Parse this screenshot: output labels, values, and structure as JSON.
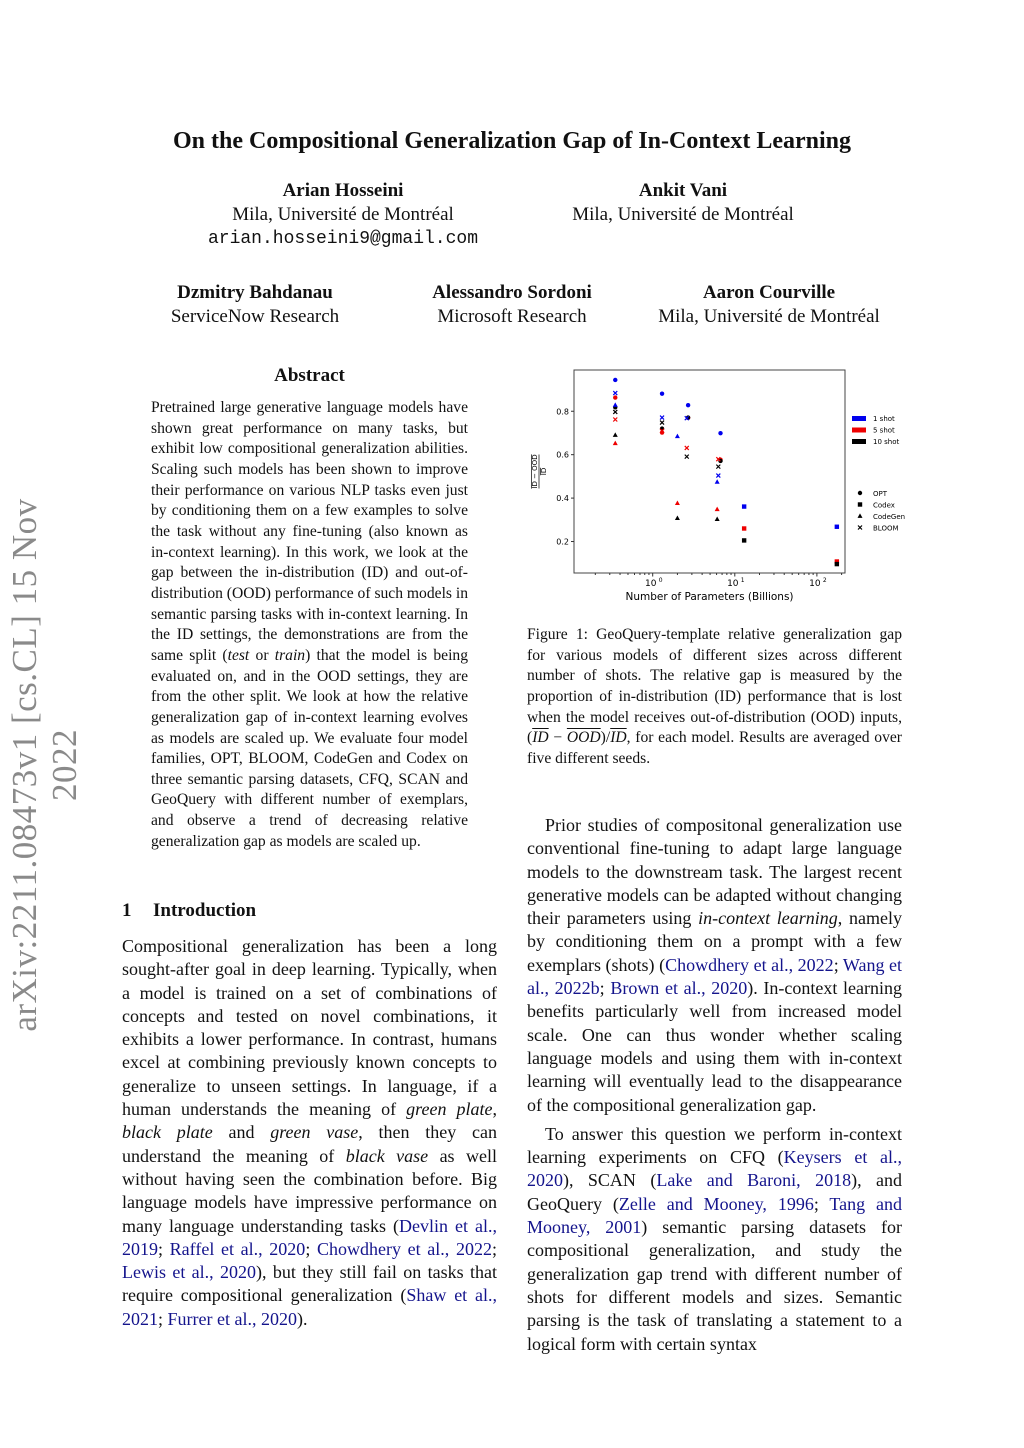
{
  "stamp": "arXiv:2211.08473v1  [cs.CL]  15 Nov 2022",
  "title": "On the Compositional Generalization Gap of In-Context Learning",
  "authors": [
    {
      "name": "Arian Hosseini",
      "affil": "Mila, Université de Montréal",
      "email": "arian.hosseini9@gmail.com"
    },
    {
      "name": "Ankit Vani",
      "affil": "Mila, Université de Montréal"
    },
    {
      "name": "Dzmitry Bahdanau",
      "affil": "ServiceNow Research"
    },
    {
      "name": "Alessandro Sordoni",
      "affil": "Microsoft Research"
    },
    {
      "name": "Aaron Courville",
      "affil": "Mila, Université de Montréal"
    }
  ],
  "abstract": {
    "heading": "Abstract",
    "segments": [
      {
        "t": "Pretrained large generative language models have shown great performance on many tasks, but exhibit low compositional generalization abilities. Scaling such models has been shown to improve their performance on various NLP tasks even just by conditioning them on a few examples to solve the task without any fine-tuning (also known as in-context learning). In this work, we look at the gap between the in-distribution (ID) and out-of-distribution (OOD) performance of such models in semantic parsing tasks with in-context learning. In the ID settings, the demonstrations are from the same split ("
      },
      {
        "t": "test",
        "s": "i"
      },
      {
        "t": " or "
      },
      {
        "t": "train",
        "s": "i"
      },
      {
        "t": ") that the model is being evaluated on, and in the OOD settings, they are from the other split. We look at how the relative generalization gap of in-context learning evolves as models are scaled up. We evaluate four model families, OPT, BLOOM, CodeGen and Codex on three semantic parsing datasets, CFQ, SCAN and GeoQuery with different number of exemplars, and observe a trend of decreasing relative generalization gap as models are scaled up."
      }
    ]
  },
  "section": {
    "number": "1",
    "title": "Introduction"
  },
  "intro_paragraphs": [
    [
      {
        "t": "Compositional generalization has been a long sought-after goal in deep learning. Typically, when a model is trained on a set of combinations of concepts and tested on novel combinations, it exhibits a lower performance. In contrast, humans excel at combining previously known concepts to generalize to unseen settings. In language, if a human understands the meaning of "
      },
      {
        "t": "green plate",
        "s": "i"
      },
      {
        "t": ", "
      },
      {
        "t": "black plate",
        "s": "i"
      },
      {
        "t": " and "
      },
      {
        "t": "green vase",
        "s": "i"
      },
      {
        "t": ", then they can understand the meaning of "
      },
      {
        "t": "black vase",
        "s": "i"
      },
      {
        "t": " as well without having seen the combination before. Big language models have impressive performance on many language understanding tasks ("
      },
      {
        "t": "Devlin et al., 2019",
        "s": "c"
      },
      {
        "t": "; "
      },
      {
        "t": "Raffel et al., 2020",
        "s": "c"
      },
      {
        "t": "; "
      },
      {
        "t": "Chowdhery et al., 2022",
        "s": "c"
      },
      {
        "t": "; "
      },
      {
        "t": "Lewis et al., 2020",
        "s": "c"
      },
      {
        "t": "), but they still fail on tasks that require compositional generalization ("
      },
      {
        "t": "Shaw et al., 2021",
        "s": "c"
      },
      {
        "t": "; "
      },
      {
        "t": "Furrer et al., 2020",
        "s": "c"
      },
      {
        "t": ")."
      }
    ]
  ],
  "figure": {
    "caption": [
      {
        "t": "Figure 1:  GeoQuery-template relative generalization gap for various models of different sizes across different number of shots. The relative gap is measured by the proportion of in-distribution (ID) performance that is lost when the model receives out-of-distribution (OOD) inputs, ("
      },
      {
        "t": "ID",
        "s": "o"
      },
      {
        "t": " − "
      },
      {
        "t": "OOD",
        "s": "o"
      },
      {
        "t": ")/"
      },
      {
        "t": "ID",
        "s": "o"
      },
      {
        "t": ", for each model. Results are averaged over five different seeds."
      }
    ]
  },
  "right_paragraphs": [
    [
      {
        "t": "Prior studies of compositonal generalization use conventional fine-tuning to adapt large language models to the downstream task. The largest recent generative models can be adapted without changing their parameters using "
      },
      {
        "t": "in-context learning",
        "s": "i"
      },
      {
        "t": ", namely by conditioning them on a prompt with a few exemplars (shots) ("
      },
      {
        "t": "Chowdhery et al., 2022",
        "s": "c"
      },
      {
        "t": "; "
      },
      {
        "t": "Wang et al., 2022b",
        "s": "c"
      },
      {
        "t": "; "
      },
      {
        "t": "Brown et al., 2020",
        "s": "c"
      },
      {
        "t": "). In-context learning benefits particularly well from increased model scale. One can thus wonder whether scaling language models and using them with in-context learning will eventually lead to the disappearance of the compositional generalization gap."
      }
    ],
    [
      {
        "t": "To answer this question we perform in-context learning experiments on CFQ ("
      },
      {
        "t": "Keysers et al., 2020",
        "s": "c"
      },
      {
        "t": "), SCAN ("
      },
      {
        "t": "Lake and Baroni, 2018",
        "s": "c"
      },
      {
        "t": "), and GeoQuery ("
      },
      {
        "t": "Zelle and Mooney, 1996",
        "s": "c"
      },
      {
        "t": "; "
      },
      {
        "t": "Tang and Mooney, 2001",
        "s": "c"
      },
      {
        "t": ") semantic parsing datasets for compositional generalization, and study the generalization gap trend with different number of shots for different models and sizes. Semantic parsing is the task of translating a statement to a logical form with certain syntax"
      }
    ]
  ],
  "chart_data": {
    "type": "scatter",
    "xlabel": "Number of Parameters (Billions)",
    "ylabel": "(ID − OOD) / ID",
    "xscale": "log",
    "xlim": [
      0.11,
      220
    ],
    "ylim": [
      0.055,
      0.99
    ],
    "xticks": [
      {
        "v": 1,
        "label": "10",
        "exp": "0"
      },
      {
        "v": 10,
        "label": "10",
        "exp": "1"
      },
      {
        "v": 100,
        "label": "10",
        "exp": "2"
      }
    ],
    "yticks": [
      0.2,
      0.4,
      0.6,
      0.8
    ],
    "grid": false,
    "legend_placement": "outside-right",
    "shot_legend": [
      {
        "name": "1 shot",
        "color": "#0000ee"
      },
      {
        "name": "5 shot",
        "color": "#ee0000"
      },
      {
        "name": "10 shot",
        "color": "#000000"
      }
    ],
    "model_legend": [
      {
        "name": "OPT",
        "marker": "circle"
      },
      {
        "name": "Codex",
        "marker": "square"
      },
      {
        "name": "CodeGen",
        "marker": "triangle"
      },
      {
        "name": "BLOOM",
        "marker": "x"
      }
    ],
    "series": [
      {
        "model": "OPT",
        "shot": "1 shot",
        "x": [
          0.35,
          1.3,
          2.7,
          6.7
        ],
        "y": [
          0.944,
          0.881,
          0.828,
          0.699
        ]
      },
      {
        "model": "OPT",
        "shot": "5 shot",
        "x": [
          0.35,
          1.3,
          2.7,
          6.7
        ],
        "y": [
          0.863,
          0.702,
          0.77,
          0.577
        ]
      },
      {
        "model": "OPT",
        "shot": "10 shot",
        "x": [
          0.35,
          1.3,
          2.7,
          6.7
        ],
        "y": [
          0.818,
          0.72,
          0.771,
          0.571
        ]
      },
      {
        "model": "Codex",
        "shot": "1 shot",
        "x": [
          13,
          175
        ],
        "y": [
          0.361,
          0.268
        ]
      },
      {
        "model": "Codex",
        "shot": "5 shot",
        "x": [
          13,
          175
        ],
        "y": [
          0.26,
          0.108
        ]
      },
      {
        "model": "Codex",
        "shot": "10 shot",
        "x": [
          13,
          175
        ],
        "y": [
          0.205,
          0.096
        ]
      },
      {
        "model": "CodeGen",
        "shot": "1 shot",
        "x": [
          0.35,
          2.0,
          6.1
        ],
        "y": [
          0.829,
          0.685,
          0.475
        ]
      },
      {
        "model": "CodeGen",
        "shot": "5 shot",
        "x": [
          0.35,
          2.0,
          6.1
        ],
        "y": [
          0.653,
          0.377,
          0.349
        ]
      },
      {
        "model": "CodeGen",
        "shot": "10 shot",
        "x": [
          0.35,
          2.0,
          6.1
        ],
        "y": [
          0.691,
          0.308,
          0.303
        ]
      },
      {
        "model": "BLOOM",
        "shot": "1 shot",
        "x": [
          0.35,
          1.3,
          2.6,
          6.3
        ],
        "y": [
          0.884,
          0.771,
          0.768,
          0.504
        ]
      },
      {
        "model": "BLOOM",
        "shot": "5 shot",
        "x": [
          0.35,
          1.3,
          2.6,
          6.3
        ],
        "y": [
          0.762,
          0.71,
          0.631,
          0.579
        ]
      },
      {
        "model": "BLOOM",
        "shot": "10 shot",
        "x": [
          0.35,
          1.3,
          2.6,
          6.3
        ],
        "y": [
          0.797,
          0.748,
          0.591,
          0.545
        ]
      }
    ]
  }
}
